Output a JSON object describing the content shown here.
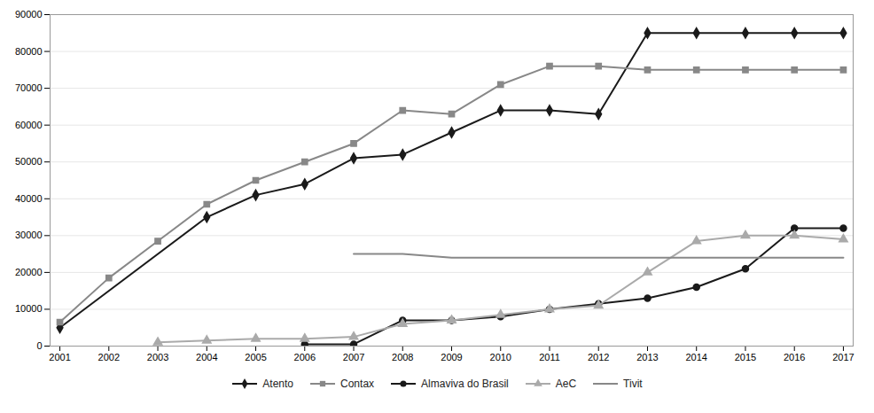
{
  "chart_data": {
    "type": "line",
    "x": [
      2001,
      2002,
      2003,
      2004,
      2005,
      2006,
      2007,
      2008,
      2009,
      2010,
      2011,
      2012,
      2013,
      2014,
      2015,
      2016,
      2017
    ],
    "xlim": [
      2000.8,
      2017.2
    ],
    "xticks": [
      2001,
      2002,
      2003,
      2004,
      2005,
      2006,
      2007,
      2008,
      2009,
      2010,
      2011,
      2012,
      2013,
      2014,
      2015,
      2016,
      2017
    ],
    "ylim": [
      0,
      90000
    ],
    "yticks": [
      0,
      10000,
      20000,
      30000,
      40000,
      50000,
      60000,
      70000,
      80000,
      90000
    ],
    "grid": true,
    "legend": "bottom",
    "series": [
      {
        "name": "Atento",
        "color": "#1a1a1a",
        "marker": "diamond",
        "values": [
          5000,
          null,
          null,
          35000,
          41000,
          44000,
          51000,
          52000,
          58000,
          64000,
          64000,
          63000,
          85000,
          85000,
          85000,
          85000,
          85000
        ]
      },
      {
        "name": "Contax",
        "color": "#888888",
        "marker": "square",
        "values": [
          6500,
          18500,
          28500,
          38500,
          45000,
          50000,
          55000,
          64000,
          63000,
          71000,
          76000,
          76000,
          75000,
          75000,
          75000,
          75000,
          75000
        ]
      },
      {
        "name": "Almaviva do Brasil",
        "color": "#1a1a1a",
        "marker": "circle",
        "values": [
          null,
          null,
          null,
          null,
          null,
          500,
          500,
          7000,
          7000,
          8000,
          10000,
          11500,
          13000,
          16000,
          21000,
          32000,
          32000
        ]
      },
      {
        "name": "AeC",
        "color": "#aaaaaa",
        "marker": "triangle",
        "values": [
          null,
          null,
          1000,
          1500,
          2000,
          2000,
          2500,
          6000,
          7000,
          8500,
          10000,
          11000,
          20000,
          28500,
          30000,
          30000,
          29000
        ]
      },
      {
        "name": "Tivit",
        "color": "#888888",
        "marker": "none",
        "values": [
          null,
          null,
          null,
          null,
          null,
          null,
          25000,
          25000,
          24000,
          24000,
          24000,
          24000,
          24000,
          24000,
          24000,
          24000,
          24000
        ]
      }
    ]
  }
}
